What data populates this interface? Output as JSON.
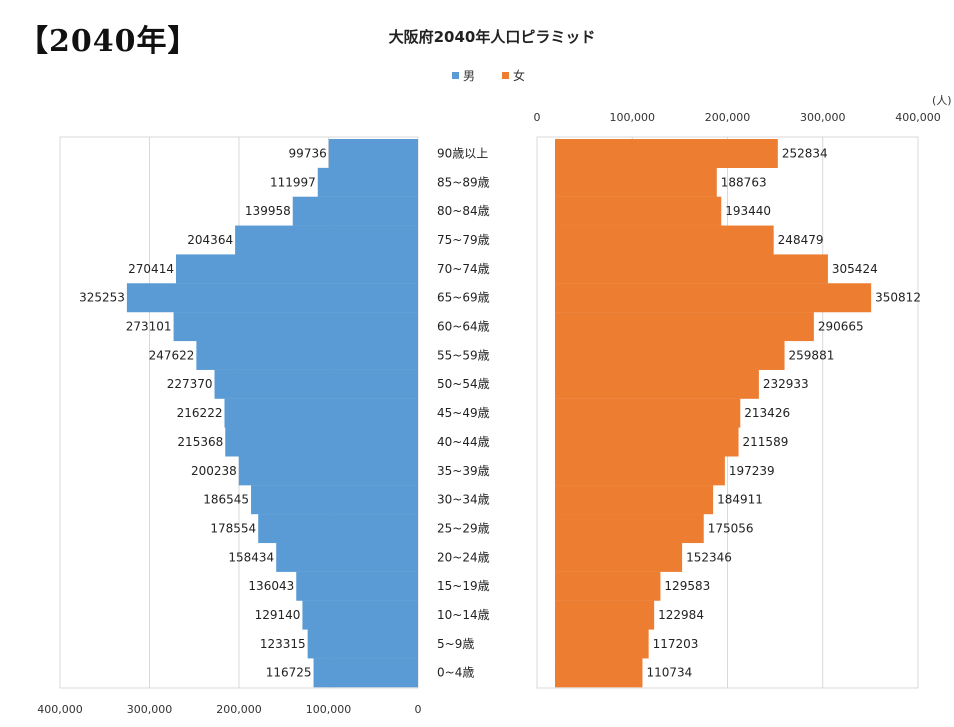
{
  "page": {
    "label": "【2040年】"
  },
  "chart_data": {
    "type": "bar",
    "orientation": "horizontal-pyramid",
    "title": "大阪府2040年人口ピラミッド",
    "unit": "(人)",
    "colors": {
      "male": "#5B9BD5",
      "female": "#ED7D31"
    },
    "legend": {
      "position": "top-center"
    },
    "grid": true,
    "categories": [
      "90歳以上",
      "85~89歳",
      "80~84歳",
      "75~79歳",
      "70~74歳",
      "65~69歳",
      "60~64歳",
      "55~59歳",
      "50~54歳",
      "45~49歳",
      "40~44歳",
      "35~39歳",
      "30~34歳",
      "25~29歳",
      "20~24歳",
      "15~19歳",
      "10~14歳",
      "5~9歳",
      "0~4歳"
    ],
    "series": [
      {
        "name": "男",
        "side": "left",
        "values": [
          99736,
          111997,
          139958,
          204364,
          270414,
          325253,
          273101,
          247622,
          227370,
          216222,
          215368,
          200238,
          186545,
          178554,
          158434,
          136043,
          129140,
          123315,
          116725
        ]
      },
      {
        "name": "女",
        "side": "right",
        "values": [
          252834,
          188763,
          193440,
          248479,
          305424,
          350812,
          290665,
          259881,
          232933,
          213426,
          211589,
          197239,
          184911,
          175056,
          152346,
          129583,
          122984,
          117203,
          110734
        ]
      }
    ],
    "male_axis": {
      "ticks": [
        "400,000",
        "300,000",
        "200,000",
        "100,000",
        "0"
      ],
      "xlim": [
        400000,
        0
      ]
    },
    "female_axis": {
      "ticks": [
        "0",
        "100,000",
        "200,000",
        "300,000",
        "400,000"
      ],
      "xlim": [
        0,
        400000
      ]
    }
  }
}
